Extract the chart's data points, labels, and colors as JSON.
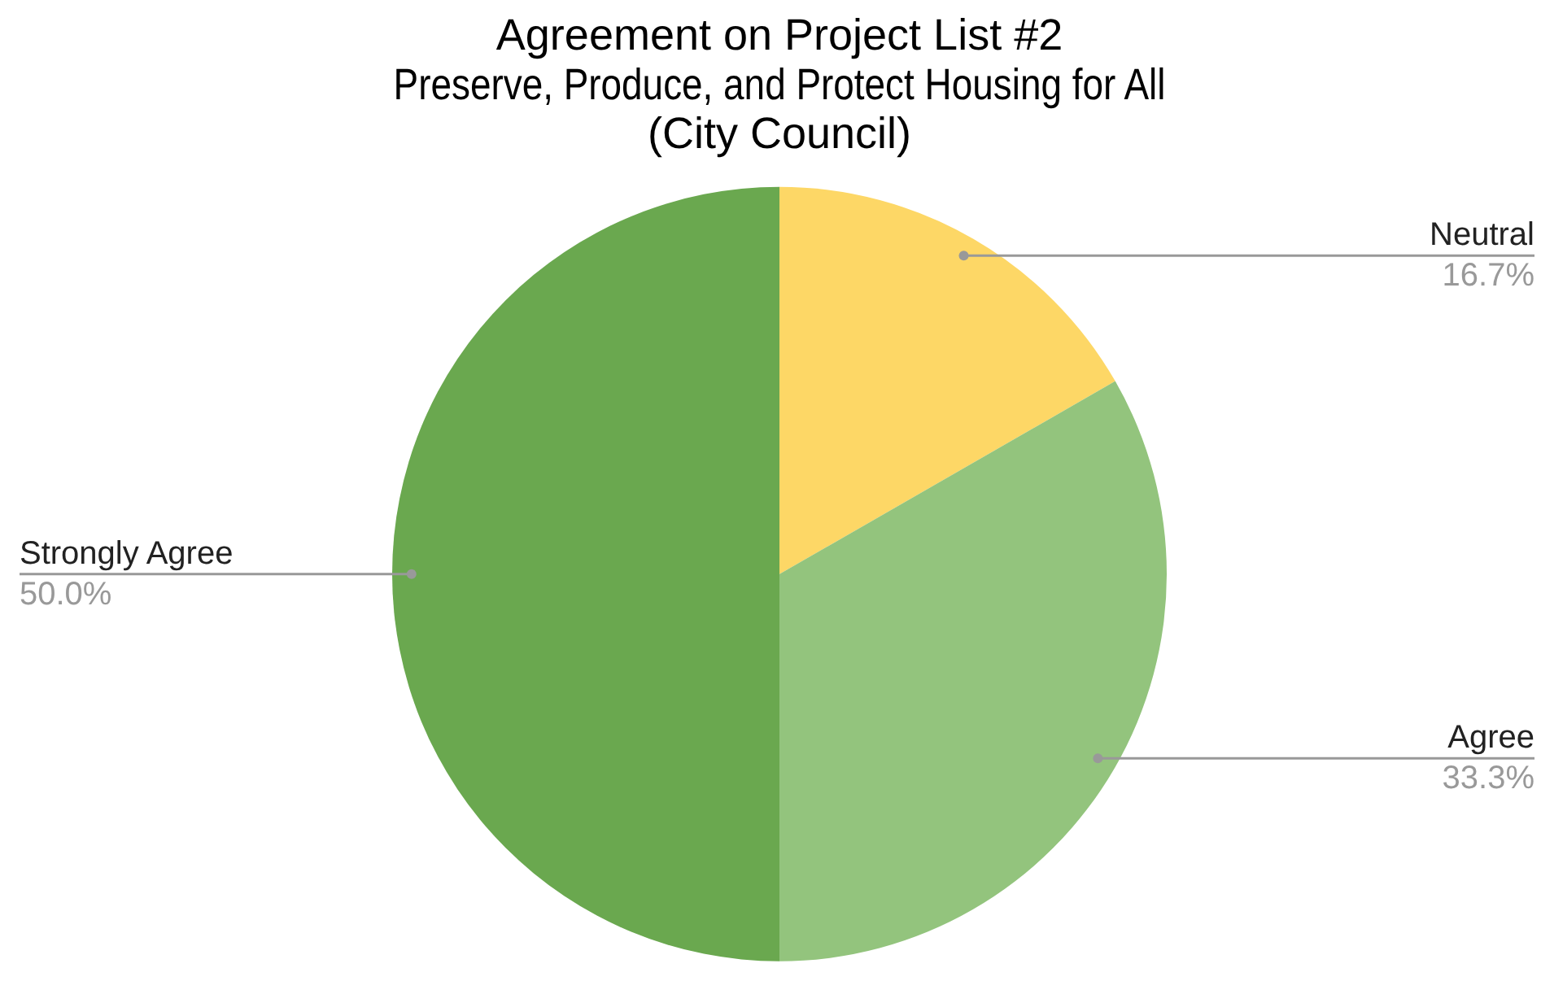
{
  "chart_data": {
    "type": "pie",
    "title": "Agreement on Project List #2\nPreserve, Produce, and Protect Housing for All\n(City Council)",
    "categories": [
      "Neutral",
      "Agree",
      "Strongly Agree"
    ],
    "values": [
      16.7,
      33.3,
      50.0
    ],
    "colors": [
      "#fdd766",
      "#93c47d",
      "#6aa84f"
    ],
    "value_labels": [
      "16.7%",
      "33.3%",
      "50.0%"
    ],
    "legend": false
  }
}
